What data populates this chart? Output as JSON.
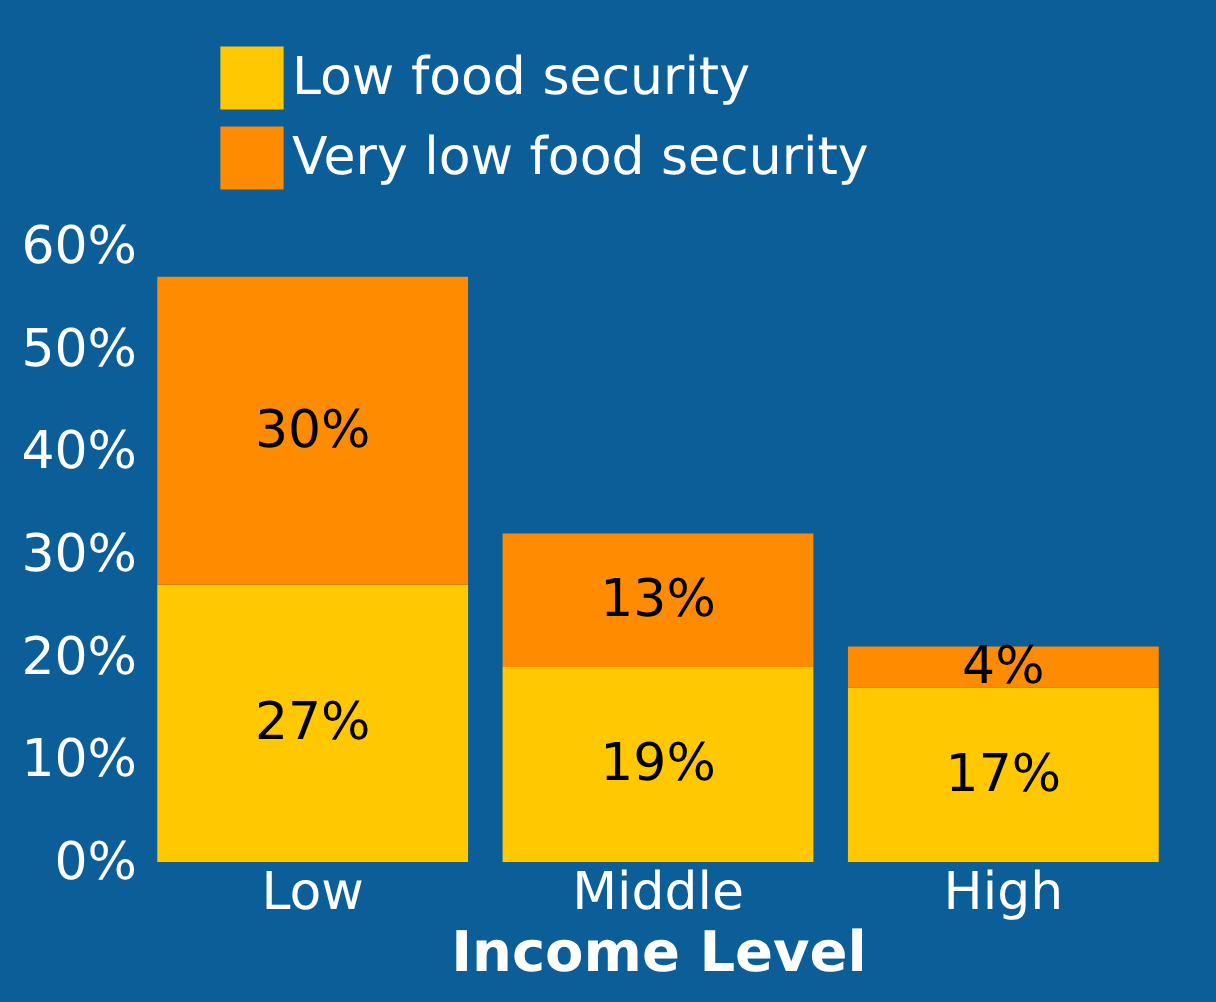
{
  "chart_data": {
    "type": "bar",
    "stacked": true,
    "xlabel": "Income Level",
    "categories": [
      "Low",
      "Middle",
      "High"
    ],
    "series": [
      {
        "name": "Low food security",
        "color": "#ffc800",
        "values": [
          27,
          19,
          17
        ],
        "value_labels": [
          "27%",
          "19%",
          "17%"
        ]
      },
      {
        "name": "Very low food security",
        "color": "#ff8c00",
        "values": [
          30,
          13,
          4
        ],
        "value_labels": [
          "30%",
          "13%",
          "4%"
        ]
      }
    ],
    "ylim": [
      0,
      60
    ],
    "yticks": [
      {
        "value": 0,
        "label": "0%"
      },
      {
        "value": 10,
        "label": "10%"
      },
      {
        "value": 20,
        "label": "20%"
      },
      {
        "value": 30,
        "label": "30%"
      },
      {
        "value": 40,
        "label": "40%"
      },
      {
        "value": 50,
        "label": "50%"
      },
      {
        "value": 60,
        "label": "60%"
      }
    ],
    "grid": false,
    "legend": "top left"
  }
}
